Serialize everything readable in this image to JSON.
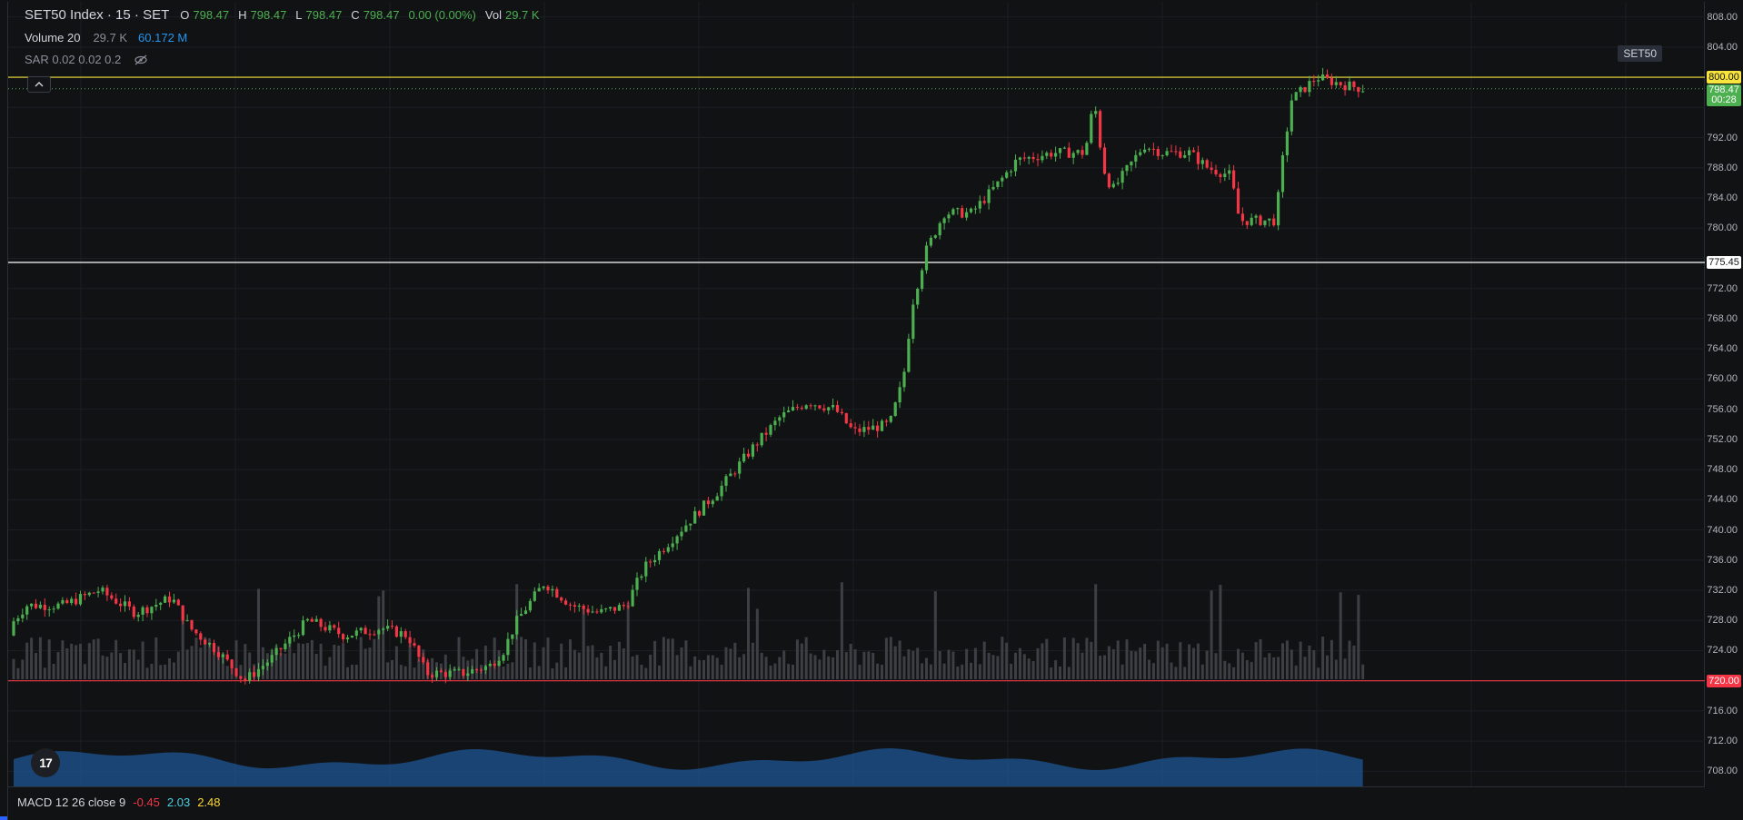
{
  "legend": {
    "symbol": "SET50 Index · 15 · SET",
    "ohlc": [
      {
        "key": "O",
        "value": "798.47"
      },
      {
        "key": "H",
        "value": "798.47"
      },
      {
        "key": "L",
        "value": "798.47"
      },
      {
        "key": "C",
        "value": "798.47"
      },
      {
        "key": "",
        "value": "0.00 (0.00%)"
      },
      {
        "key": "Vol",
        "value": "29.7 K"
      }
    ],
    "volume": {
      "name": "Volume 20",
      "v1": "29.7 K",
      "v2": "60.172 M"
    },
    "sar": {
      "name": "SAR 0.02 0.02 0.2"
    }
  },
  "symbol_tag": "SET50",
  "collapse_icon": "chevron-up-icon",
  "price_scale": {
    "min": 706,
    "max": 810,
    "ticks": [
      "808.00",
      "804.00",
      "792.00",
      "788.00",
      "784.00",
      "780.00",
      "772.00",
      "768.00",
      "764.00",
      "760.00",
      "756.00",
      "752.00",
      "748.00",
      "744.00",
      "740.00",
      "736.00",
      "732.00",
      "728.00",
      "724.00",
      "716.00",
      "712.00",
      "708.00"
    ]
  },
  "horizontal_lines": [
    {
      "label": "800.00",
      "price": 800.0,
      "color": "#f7e43c",
      "text_color": "#111214"
    },
    {
      "label": "775.45",
      "price": 775.45,
      "color": "#ffffff",
      "text_color": "#111214"
    },
    {
      "label": "720.00",
      "price": 720.0,
      "color": "#f23645",
      "text_color": "#ffffff"
    }
  ],
  "last_price": {
    "label": "798.47",
    "countdown": "00:28",
    "price": 798.47,
    "color": "#4caf50"
  },
  "macd": {
    "name": "MACD 12 26 close 9",
    "v1": "-0.45",
    "v2": "2.03",
    "v3": "2.48"
  },
  "colors": {
    "up": "#4caf50",
    "down": "#f23645",
    "volume_bar": "#3d3f45",
    "volume_ma": "#1f5fa6"
  },
  "logo_text": "17"
}
